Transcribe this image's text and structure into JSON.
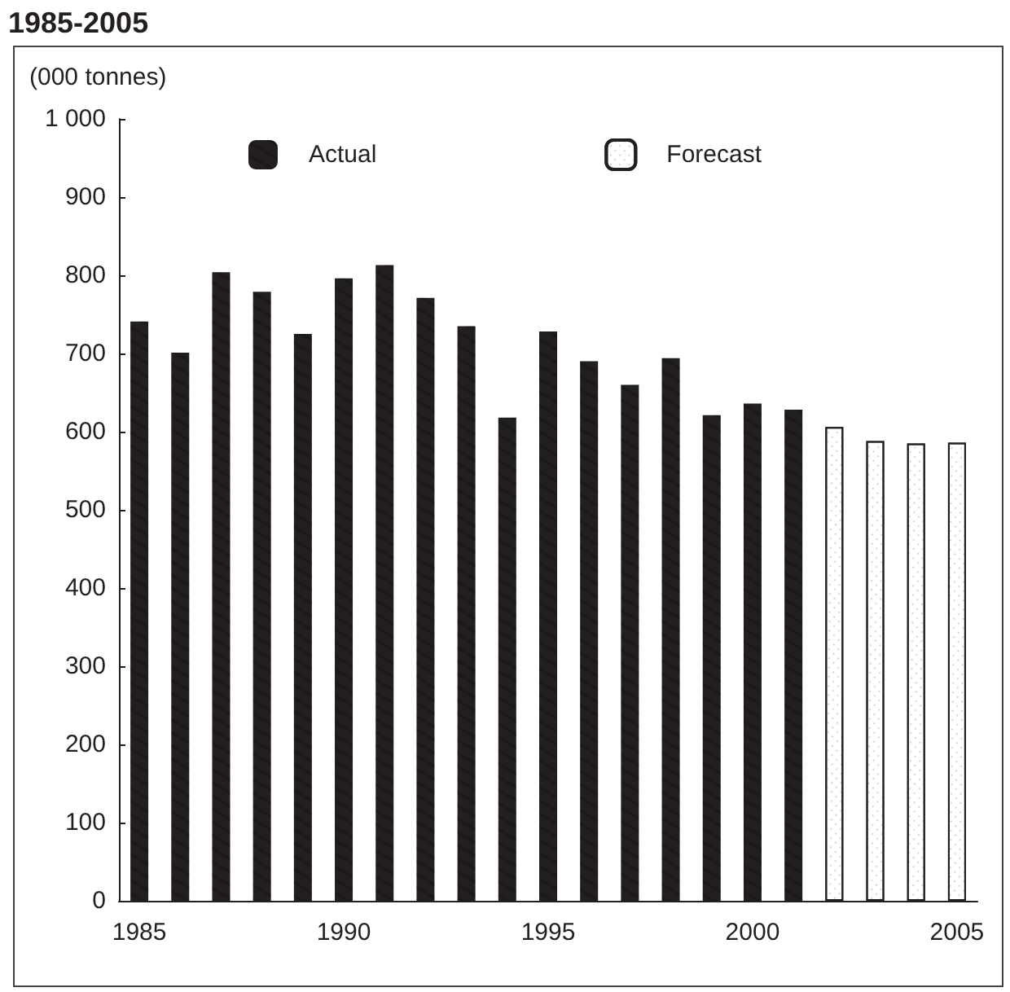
{
  "chart_data": {
    "type": "bar",
    "title": "1985-2005",
    "ylabel": "(000 tonnes)",
    "categories": [
      "1985",
      null,
      null,
      null,
      null,
      "1990",
      null,
      null,
      null,
      null,
      "1995",
      null,
      null,
      null,
      null,
      "2000",
      null,
      null,
      null,
      null,
      "2005"
    ],
    "series": [
      {
        "name": "Actual",
        "color": "#231f20",
        "values": [
          741,
          701,
          804,
          779,
          725,
          796,
          813,
          771,
          735,
          618,
          728,
          690,
          660,
          694,
          621,
          636,
          628,
          null,
          null,
          null,
          null
        ]
      },
      {
        "name": "Forecast",
        "color": "#ffffff",
        "values": [
          null,
          null,
          null,
          null,
          null,
          null,
          null,
          null,
          null,
          null,
          null,
          null,
          null,
          null,
          null,
          null,
          null,
          606,
          588,
          585,
          586
        ]
      }
    ],
    "ylim": [
      0,
      1000
    ],
    "yticks": [
      0,
      100,
      200,
      300,
      400,
      500,
      600,
      700,
      800,
      900,
      {
        "value": 1000,
        "label": "1 000"
      }
    ],
    "grid": false,
    "legend": "top"
  }
}
